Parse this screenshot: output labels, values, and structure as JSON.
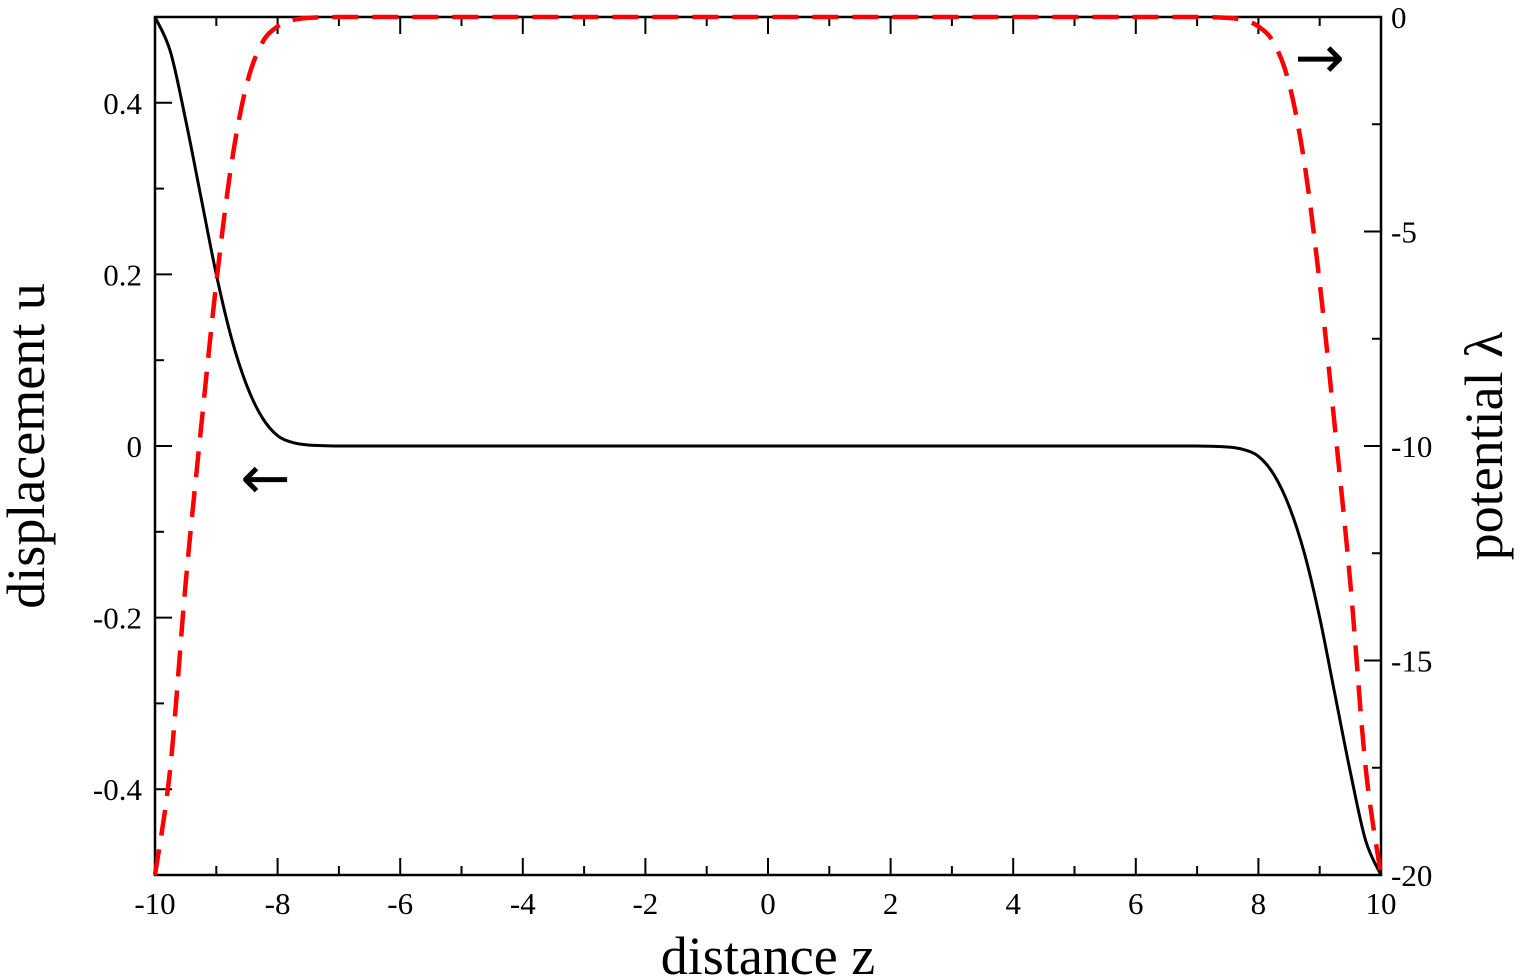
{
  "chart_data": {
    "type": "line",
    "title": "",
    "xlabel": "distance  z",
    "ylabel_left": "displacement  u",
    "ylabel_right": "potential  λ",
    "xlim": [
      -10,
      10
    ],
    "ylim_left": [
      -0.5,
      0.5
    ],
    "ylim_right": [
      -20,
      0
    ],
    "x_ticks": [
      "-10",
      "-8",
      "-6",
      "-4",
      "-2",
      "0",
      "2",
      "4",
      "6",
      "8",
      "10"
    ],
    "y_left_ticks": [
      "-0.4",
      "-0.2",
      "0",
      "0.2",
      "0.4"
    ],
    "y_right_ticks": [
      "-20",
      "-15",
      "-10",
      "-5",
      "0"
    ],
    "grid": false,
    "series": [
      {
        "axis": "left",
        "color": "#000000",
        "style": "solid",
        "x": [
          -10,
          -9.75,
          -9.5,
          -9.25,
          -9.0,
          -8.75,
          -8.5,
          -8.25,
          -8.0,
          -7.75,
          -7.5,
          -7.0,
          -6.0,
          -4.0,
          -2.0,
          0.0,
          2.0,
          4.0,
          6.0,
          7.0,
          7.5,
          7.75,
          8.0,
          8.25,
          8.5,
          8.75,
          9.0,
          9.25,
          9.5,
          9.75,
          10
        ],
        "values": [
          0.5,
          0.46,
          0.38,
          0.29,
          0.2,
          0.125,
          0.07,
          0.033,
          0.012,
          0.004,
          0.0012,
          0,
          0,
          0,
          0,
          0,
          0,
          0,
          0,
          0,
          -0.0012,
          -0.004,
          -0.012,
          -0.033,
          -0.07,
          -0.125,
          -0.2,
          -0.29,
          -0.38,
          -0.46,
          -0.5
        ]
      },
      {
        "axis": "right",
        "color": "#ff0000",
        "style": "dashed",
        "x": [
          -10,
          -9.75,
          -9.5,
          -9.25,
          -9.0,
          -8.75,
          -8.5,
          -8.25,
          -8.0,
          -7.75,
          -7.5,
          -7.0,
          -6.0,
          -4.0,
          -2.0,
          0.0,
          2.0,
          4.0,
          6.0,
          7.0,
          7.5,
          7.75,
          8.0,
          8.25,
          8.5,
          8.75,
          9.0,
          9.25,
          9.5,
          9.75,
          10
        ],
        "values": [
          -20,
          -17.5,
          -13.2,
          -9.6,
          -6.2,
          -3.4,
          -1.55,
          -0.6,
          -0.22,
          -0.07,
          -0.02,
          0,
          0,
          0,
          0,
          0,
          0,
          0,
          0,
          0,
          -0.02,
          -0.07,
          -0.22,
          -0.6,
          -1.55,
          -3.4,
          -6.2,
          -9.6,
          -13.2,
          -17.5,
          -20
        ]
      }
    ],
    "annotations": [
      {
        "symbol": "←",
        "meaning": "left axis",
        "color": "#000000",
        "x": -8.2,
        "y_left": -0.04
      },
      {
        "symbol": "→",
        "meaning": "right axis",
        "color": "#ff0000",
        "x": 9.0,
        "y_right": -1.0
      }
    ]
  }
}
